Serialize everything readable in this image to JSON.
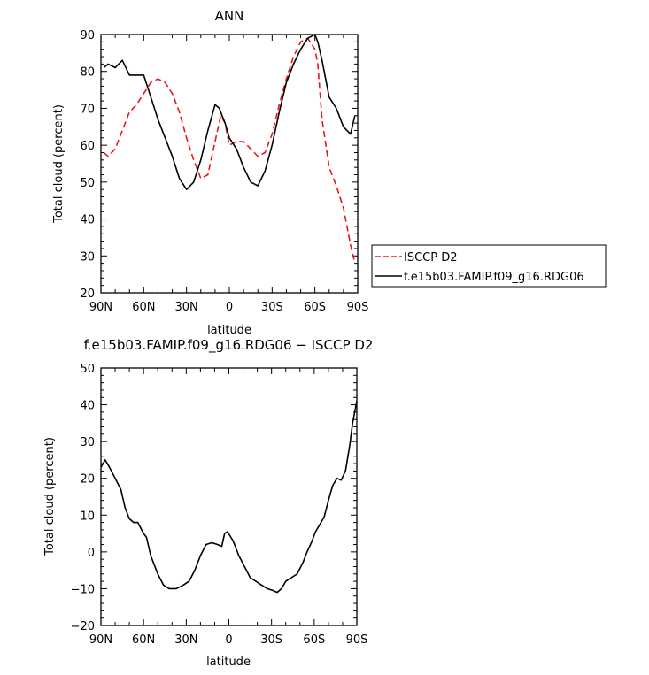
{
  "chart_data": [
    {
      "type": "line",
      "title": "ANN",
      "xlabel": "latitude",
      "ylabel": "Total cloud (percent)",
      "xlim": [
        90,
        -90
      ],
      "ylim": [
        20,
        90
      ],
      "x_ticks": [
        90,
        60,
        30,
        0,
        -30,
        -60,
        -90
      ],
      "x_tick_labels": [
        "90N",
        "60N",
        "30N",
        "0",
        "30S",
        "60S",
        "90S"
      ],
      "y_ticks": [
        20,
        30,
        40,
        50,
        60,
        70,
        80,
        90
      ],
      "y_tick_labels": [
        "20",
        "30",
        "40",
        "50",
        "60",
        "70",
        "80",
        "90"
      ],
      "grid": false,
      "legend_position": "right, outside plot",
      "series": [
        {
          "name": "ISCCP D2",
          "color": "#e8181a",
          "style": "dashed",
          "x": [
            88,
            85,
            80,
            75,
            70,
            65,
            60,
            55,
            50,
            45,
            40,
            35,
            30,
            25,
            20,
            15,
            10,
            6,
            3,
            0,
            -5,
            -10,
            -15,
            -20,
            -25,
            -30,
            -35,
            -40,
            -45,
            -50,
            -55,
            -60,
            -62,
            -65,
            -70,
            -75,
            -80,
            -85,
            -88
          ],
          "values": [
            58,
            57,
            59,
            64,
            69,
            71,
            74,
            77,
            78,
            77,
            74,
            69,
            62,
            56,
            51,
            52,
            61,
            68,
            66,
            60,
            61,
            61,
            59,
            57,
            58,
            63,
            71,
            78,
            84,
            88,
            89,
            86,
            82,
            67,
            54,
            49,
            43,
            33,
            28
          ]
        },
        {
          "name": "f.e15b03.FAMIP.f09_g16.RDG06",
          "color": "#000000",
          "style": "solid",
          "x": [
            88,
            85,
            80,
            75,
            70,
            65,
            60,
            55,
            50,
            45,
            40,
            35,
            30,
            25,
            20,
            15,
            10,
            7,
            5,
            3,
            0,
            -5,
            -10,
            -15,
            -20,
            -25,
            -30,
            -35,
            -40,
            -45,
            -50,
            -55,
            -60,
            -62,
            -65,
            -70,
            -75,
            -80,
            -85,
            -88
          ],
          "values": [
            81,
            82,
            81,
            83,
            79,
            79,
            79,
            73,
            67,
            62,
            57,
            51,
            48,
            50,
            56,
            64,
            71,
            70,
            68,
            66,
            62,
            59,
            54,
            50,
            49,
            53,
            60,
            69,
            77,
            82,
            86,
            89,
            90,
            88,
            83,
            73,
            70,
            65,
            63,
            68
          ]
        }
      ]
    },
    {
      "type": "line",
      "title": "f.e15b03.FAMIP.f09_g16.RDG06 − ISCCP D2",
      "xlabel": "latitude",
      "ylabel": "Total cloud (percent)",
      "xlim": [
        90,
        -90
      ],
      "ylim": [
        -20,
        50
      ],
      "x_ticks": [
        90,
        60,
        30,
        0,
        -30,
        -60,
        -90
      ],
      "x_tick_labels": [
        "90N",
        "60N",
        "30N",
        "0",
        "30S",
        "60S",
        "90S"
      ],
      "y_ticks": [
        -20,
        -10,
        0,
        10,
        20,
        30,
        40,
        50
      ],
      "y_tick_labels": [
        "−20",
        "−10",
        "0",
        "10",
        "20",
        "30",
        "40",
        "50"
      ],
      "grid": false,
      "series": [
        {
          "color": "#000000",
          "style": "solid",
          "x": [
            90,
            87,
            84,
            80,
            76,
            73,
            70,
            67,
            64,
            60,
            58,
            55,
            50,
            46,
            42,
            37,
            32,
            28,
            24,
            20,
            16,
            12,
            8,
            5,
            3,
            1,
            -3,
            -7,
            -11,
            -15,
            -19,
            -23,
            -27,
            -31,
            -34,
            -37,
            -40,
            -44,
            -48,
            -52,
            -55,
            -58,
            -61,
            -64,
            -67,
            -70,
            -73,
            -76,
            -79,
            -82,
            -85,
            -87,
            -90
          ],
          "values": [
            23,
            25,
            23,
            20,
            17,
            12,
            9,
            8,
            8,
            5,
            4,
            -1,
            -6,
            -9,
            -10,
            -10,
            -9,
            -8,
            -5,
            -1,
            2,
            2.5,
            2,
            1.5,
            5,
            5.5,
            3,
            -1,
            -4,
            -7,
            -8,
            -9,
            -10,
            -10.5,
            -11,
            -10,
            -8,
            -7,
            -6,
            -3,
            0,
            2.5,
            5.5,
            7.5,
            9.5,
            14,
            18,
            20,
            19.5,
            22,
            29,
            35,
            41
          ]
        }
      ]
    }
  ]
}
